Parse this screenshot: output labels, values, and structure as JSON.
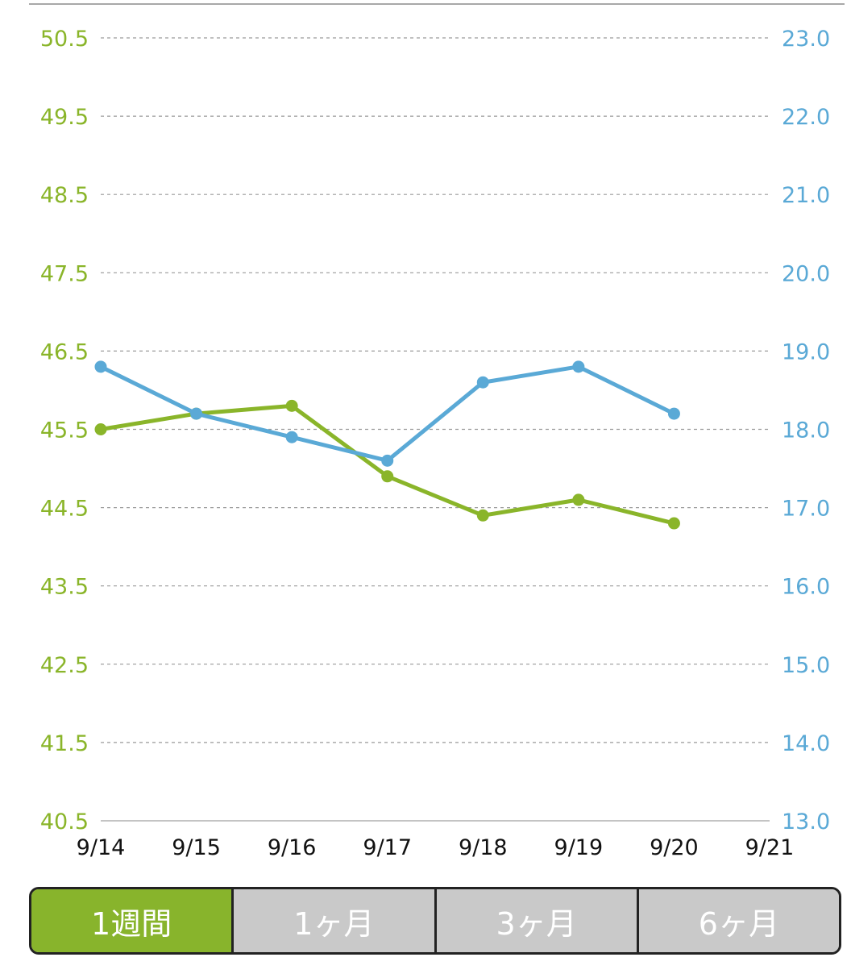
{
  "colors": {
    "weight": "#8ab52a",
    "bmi": "#5aa9d6",
    "active_tab": "#88b42c",
    "inactive_tab": "#c9c9c9"
  },
  "chart_data": {
    "type": "line",
    "x": [
      "9/14",
      "9/15",
      "9/16",
      "9/17",
      "9/18",
      "9/19",
      "9/20",
      "9/21"
    ],
    "xlim": [
      "9/14",
      "9/21"
    ],
    "series": [
      {
        "axis": "left",
        "color": "#8ab52a",
        "values": [
          45.5,
          45.7,
          45.8,
          44.9,
          44.4,
          44.6,
          44.3,
          null
        ]
      },
      {
        "axis": "right",
        "color": "#5aa9d6",
        "values": [
          18.8,
          18.2,
          17.9,
          17.6,
          18.6,
          18.8,
          18.2,
          null
        ]
      }
    ],
    "y_left": {
      "ylim": [
        40.5,
        50.5
      ],
      "ticks": [
        "50.5",
        "49.5",
        "48.5",
        "47.5",
        "46.5",
        "45.5",
        "44.5",
        "43.5",
        "42.5",
        "41.5",
        "40.5"
      ]
    },
    "y_right": {
      "ylim": [
        13.0,
        23.0
      ],
      "ticks": [
        "23.0",
        "22.0",
        "21.0",
        "20.0",
        "19.0",
        "18.0",
        "17.0",
        "16.0",
        "15.0",
        "14.0",
        "13.0"
      ]
    },
    "grid": true,
    "grid_style": "dashed"
  },
  "tabs": [
    {
      "label": "1週間",
      "active": true
    },
    {
      "label": "1ヶ月",
      "active": false
    },
    {
      "label": "3ヶ月",
      "active": false
    },
    {
      "label": "6ヶ月",
      "active": false
    }
  ]
}
